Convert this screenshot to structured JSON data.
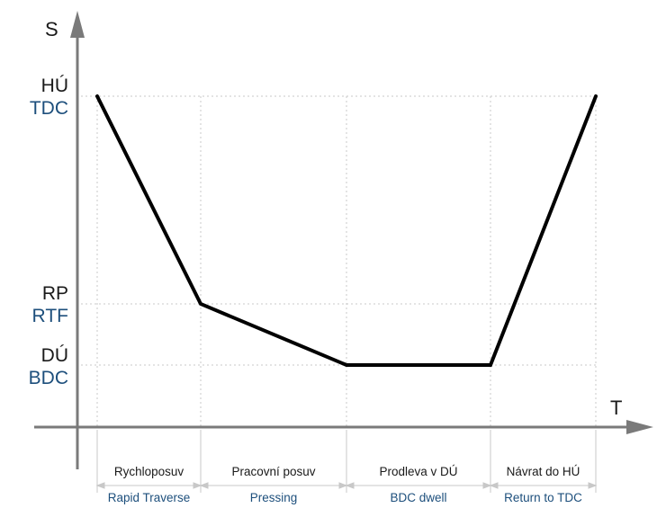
{
  "axes": {
    "y_label": "S",
    "x_label": "T"
  },
  "levels": {
    "tdc": {
      "cz": "HÚ",
      "en": "TDC"
    },
    "rtf": {
      "cz": "RP",
      "en": "RTF"
    },
    "bdc": {
      "cz": "DÚ",
      "en": "BDC"
    }
  },
  "phases": [
    {
      "cz": "Rychloposuv",
      "en": "Rapid Traverse"
    },
    {
      "cz": "Pracovní posuv",
      "en": "Pressing"
    },
    {
      "cz": "Prodleva v DÚ",
      "en": "BDC dwell"
    },
    {
      "cz": "Návrat do HÚ",
      "en": "Return to TDC"
    }
  ],
  "colors": {
    "curve": "#000000",
    "axis": "#7a7a7a",
    "english_label": "#1d4f7c"
  }
}
